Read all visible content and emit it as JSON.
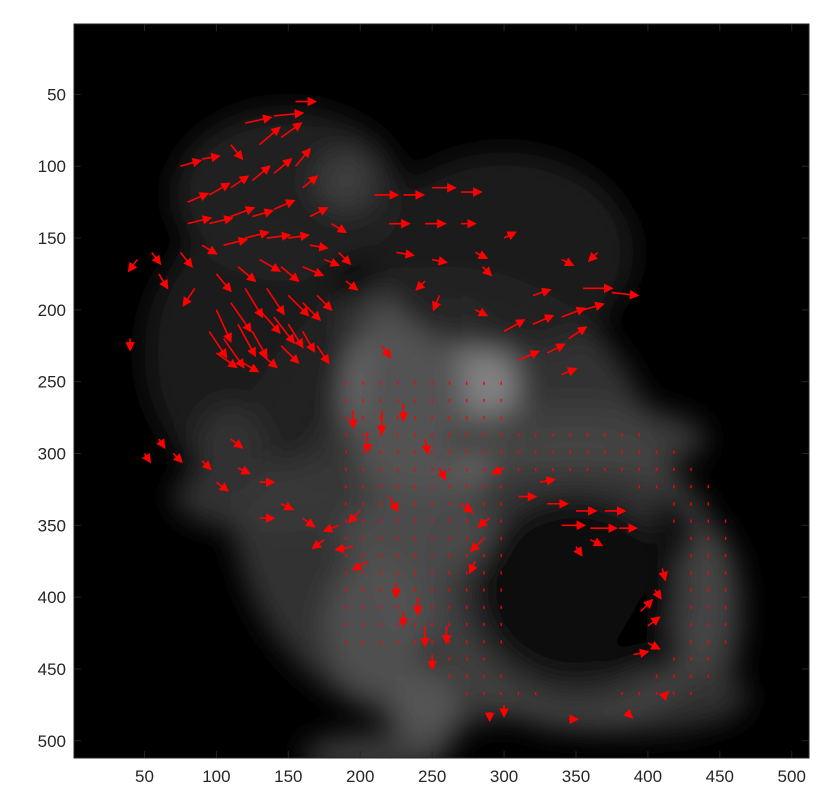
{
  "chart_data": {
    "type": "quiver",
    "title": "",
    "xlabel": "",
    "ylabel": "",
    "xlim": [
      1,
      512
    ],
    "ylim": [
      512,
      1
    ],
    "y_direction": "reversed",
    "x_ticks": [
      "50",
      "100",
      "150",
      "200",
      "250",
      "300",
      "350",
      "400",
      "450",
      "500"
    ],
    "y_ticks": [
      "50",
      "100",
      "150",
      "200",
      "250",
      "300",
      "350",
      "400",
      "450",
      "500"
    ],
    "background": "grayscale image",
    "arrow_color": "#ff0000",
    "grid": false,
    "legend": "none",
    "blobs": [
      {
        "x": 260,
        "y": 330,
        "rx": 150,
        "ry": 160,
        "intensity": 0.22
      },
      {
        "x": 250,
        "y": 260,
        "rx": 60,
        "ry": 70,
        "intensity": 0.55
      },
      {
        "x": 235,
        "y": 300,
        "rx": 40,
        "ry": 130,
        "intensity": 0.3
      },
      {
        "x": 120,
        "y": 230,
        "rx": 70,
        "ry": 90,
        "intensity": 0.12
      },
      {
        "x": 150,
        "y": 120,
        "rx": 80,
        "ry": 60,
        "intensity": 0.14
      },
      {
        "x": 300,
        "y": 160,
        "rx": 90,
        "ry": 70,
        "intensity": 0.12
      },
      {
        "x": 190,
        "y": 110,
        "rx": 22,
        "ry": 22,
        "intensity": 0.25
      },
      {
        "x": 240,
        "y": 355,
        "rx": 55,
        "ry": 30,
        "intensity": 0.3
      },
      {
        "x": 140,
        "y": 330,
        "rx": 70,
        "ry": 25,
        "intensity": 0.22
      },
      {
        "x": 110,
        "y": 300,
        "rx": 25,
        "ry": 35,
        "intensity": 0.2
      },
      {
        "x": 210,
        "y": 420,
        "rx": 35,
        "ry": 50,
        "intensity": 0.32
      },
      {
        "x": 245,
        "y": 480,
        "rx": 25,
        "ry": 30,
        "intensity": 0.35
      },
      {
        "x": 210,
        "y": 510,
        "rx": 50,
        "ry": 15,
        "intensity": 0.25
      },
      {
        "x": 440,
        "y": 410,
        "rx": 25,
        "ry": 60,
        "intensity": 0.28
      },
      {
        "x": 350,
        "y": 290,
        "rx": 90,
        "ry": 25,
        "intensity": 0.25
      },
      {
        "x": 390,
        "y": 470,
        "rx": 80,
        "ry": 25,
        "intensity": 0.2
      },
      {
        "x": 350,
        "y": 395,
        "rx": 70,
        "ry": 65,
        "intensity": -0.06
      }
    ],
    "ring": {
      "x": 350,
      "y": 390,
      "r": 95,
      "width": 14,
      "intensity": 0.28
    },
    "vectors": [
      {
        "x": 95,
        "y": 215,
        "u": 12,
        "v": 18
      },
      {
        "x": 105,
        "y": 220,
        "u": 14,
        "v": 20
      },
      {
        "x": 115,
        "y": 210,
        "u": 12,
        "v": 22
      },
      {
        "x": 125,
        "y": 215,
        "u": 10,
        "v": 18
      },
      {
        "x": 100,
        "y": 200,
        "u": 10,
        "v": 22
      },
      {
        "x": 110,
        "y": 195,
        "u": 14,
        "v": 20
      },
      {
        "x": 130,
        "y": 200,
        "u": 14,
        "v": 16
      },
      {
        "x": 140,
        "y": 205,
        "u": 14,
        "v": 18
      },
      {
        "x": 150,
        "y": 210,
        "u": 10,
        "v": 16
      },
      {
        "x": 160,
        "y": 215,
        "u": 8,
        "v": 14
      },
      {
        "x": 100,
        "y": 230,
        "u": 14,
        "v": 10
      },
      {
        "x": 115,
        "y": 235,
        "u": 14,
        "v": 8
      },
      {
        "x": 130,
        "y": 230,
        "u": 12,
        "v": 10
      },
      {
        "x": 145,
        "y": 225,
        "u": 12,
        "v": 12
      },
      {
        "x": 170,
        "y": 225,
        "u": 8,
        "v": 12
      },
      {
        "x": 120,
        "y": 185,
        "u": 12,
        "v": 20
      },
      {
        "x": 135,
        "y": 185,
        "u": 12,
        "v": 18
      },
      {
        "x": 150,
        "y": 190,
        "u": 14,
        "v": 14
      },
      {
        "x": 160,
        "y": 195,
        "u": 12,
        "v": 12
      },
      {
        "x": 170,
        "y": 190,
        "u": 10,
        "v": 10
      },
      {
        "x": 85,
        "y": 185,
        "u": -8,
        "v": 12
      },
      {
        "x": 100,
        "y": 175,
        "u": 10,
        "v": 12
      },
      {
        "x": 115,
        "y": 170,
        "u": 12,
        "v": 10
      },
      {
        "x": 130,
        "y": 165,
        "u": 14,
        "v": 8
      },
      {
        "x": 145,
        "y": 170,
        "u": 12,
        "v": 10
      },
      {
        "x": 160,
        "y": 170,
        "u": 14,
        "v": 6
      },
      {
        "x": 75,
        "y": 160,
        "u": 8,
        "v": 10
      },
      {
        "x": 90,
        "y": 155,
        "u": 10,
        "v": 6
      },
      {
        "x": 105,
        "y": 155,
        "u": 16,
        "v": -4
      },
      {
        "x": 120,
        "y": 150,
        "u": 16,
        "v": -4
      },
      {
        "x": 135,
        "y": 150,
        "u": 16,
        "v": -2
      },
      {
        "x": 150,
        "y": 150,
        "u": 14,
        "v": -2
      },
      {
        "x": 165,
        "y": 155,
        "u": 12,
        "v": 2
      },
      {
        "x": 175,
        "y": 165,
        "u": 10,
        "v": 4
      },
      {
        "x": 80,
        "y": 140,
        "u": 16,
        "v": -4
      },
      {
        "x": 95,
        "y": 140,
        "u": 16,
        "v": -4
      },
      {
        "x": 110,
        "y": 135,
        "u": 16,
        "v": -6
      },
      {
        "x": 125,
        "y": 135,
        "u": 14,
        "v": -4
      },
      {
        "x": 140,
        "y": 130,
        "u": 14,
        "v": -6
      },
      {
        "x": 80,
        "y": 125,
        "u": 14,
        "v": -6
      },
      {
        "x": 95,
        "y": 120,
        "u": 14,
        "v": -8
      },
      {
        "x": 110,
        "y": 115,
        "u": 12,
        "v": -8
      },
      {
        "x": 125,
        "y": 110,
        "u": 12,
        "v": -10
      },
      {
        "x": 140,
        "y": 105,
        "u": 12,
        "v": -10
      },
      {
        "x": 155,
        "y": 100,
        "u": 10,
        "v": -12
      },
      {
        "x": 75,
        "y": 100,
        "u": 14,
        "v": -4
      },
      {
        "x": 90,
        "y": 95,
        "u": 12,
        "v": -2
      },
      {
        "x": 130,
        "y": 85,
        "u": 14,
        "v": -12
      },
      {
        "x": 145,
        "y": 80,
        "u": 14,
        "v": -10
      },
      {
        "x": 120,
        "y": 70,
        "u": 18,
        "v": -4
      },
      {
        "x": 140,
        "y": 65,
        "u": 20,
        "v": -2
      },
      {
        "x": 155,
        "y": 55,
        "u": 14,
        "v": 0
      },
      {
        "x": 110,
        "y": 85,
        "u": 8,
        "v": 10
      },
      {
        "x": 160,
        "y": 115,
        "u": 10,
        "v": -8
      },
      {
        "x": 165,
        "y": 135,
        "u": 12,
        "v": -6
      },
      {
        "x": 180,
        "y": 140,
        "u": 10,
        "v": 6
      },
      {
        "x": 185,
        "y": 160,
        "u": 8,
        "v": 8
      },
      {
        "x": 190,
        "y": 180,
        "u": 8,
        "v": 6
      },
      {
        "x": 45,
        "y": 165,
        "u": -6,
        "v": 8
      },
      {
        "x": 55,
        "y": 160,
        "u": 6,
        "v": 8
      },
      {
        "x": 60,
        "y": 175,
        "u": 6,
        "v": 10
      },
      {
        "x": 210,
        "y": 120,
        "u": 16,
        "v": 0
      },
      {
        "x": 230,
        "y": 120,
        "u": 14,
        "v": 0
      },
      {
        "x": 250,
        "y": 115,
        "u": 16,
        "v": 0
      },
      {
        "x": 270,
        "y": 118,
        "u": 14,
        "v": 0
      },
      {
        "x": 220,
        "y": 140,
        "u": 14,
        "v": 0
      },
      {
        "x": 245,
        "y": 140,
        "u": 14,
        "v": 0
      },
      {
        "x": 270,
        "y": 140,
        "u": 10,
        "v": 0
      },
      {
        "x": 225,
        "y": 160,
        "u": 12,
        "v": 2
      },
      {
        "x": 250,
        "y": 165,
        "u": 10,
        "v": 2
      },
      {
        "x": 280,
        "y": 160,
        "u": 8,
        "v": 4
      },
      {
        "x": 300,
        "y": 150,
        "u": 8,
        "v": -4
      },
      {
        "x": 285,
        "y": 170,
        "u": 6,
        "v": 6
      },
      {
        "x": 255,
        "y": 190,
        "u": -4,
        "v": 10
      },
      {
        "x": 245,
        "y": 180,
        "u": -6,
        "v": 6
      },
      {
        "x": 215,
        "y": 225,
        "u": 6,
        "v": 8
      },
      {
        "x": 300,
        "y": 215,
        "u": 14,
        "v": -8
      },
      {
        "x": 320,
        "y": 210,
        "u": 14,
        "v": -6
      },
      {
        "x": 340,
        "y": 205,
        "u": 16,
        "v": -6
      },
      {
        "x": 355,
        "y": 200,
        "u": 14,
        "v": -4
      },
      {
        "x": 310,
        "y": 235,
        "u": 14,
        "v": -6
      },
      {
        "x": 330,
        "y": 230,
        "u": 12,
        "v": -6
      },
      {
        "x": 345,
        "y": 220,
        "u": 12,
        "v": -8
      },
      {
        "x": 320,
        "y": 190,
        "u": 12,
        "v": -4
      },
      {
        "x": 355,
        "y": 185,
        "u": 20,
        "v": 0
      },
      {
        "x": 375,
        "y": 188,
        "u": 18,
        "v": 2
      },
      {
        "x": 340,
        "y": 245,
        "u": 10,
        "v": -4
      },
      {
        "x": 365,
        "y": 160,
        "u": -6,
        "v": 6
      },
      {
        "x": 340,
        "y": 165,
        "u": 8,
        "v": 4
      },
      {
        "x": 280,
        "y": 200,
        "u": 8,
        "v": 4
      },
      {
        "x": 215,
        "y": 270,
        "u": 0,
        "v": 16
      },
      {
        "x": 205,
        "y": 285,
        "u": 0,
        "v": 14
      },
      {
        "x": 195,
        "y": 270,
        "u": 0,
        "v": 12
      },
      {
        "x": 230,
        "y": 265,
        "u": 0,
        "v": 12
      },
      {
        "x": 245,
        "y": 290,
        "u": 2,
        "v": 10
      },
      {
        "x": 255,
        "y": 310,
        "u": 4,
        "v": 8
      },
      {
        "x": 220,
        "y": 330,
        "u": 6,
        "v": 10
      },
      {
        "x": 200,
        "y": 340,
        "u": -8,
        "v": 8
      },
      {
        "x": 185,
        "y": 350,
        "u": -10,
        "v": 4
      },
      {
        "x": 175,
        "y": 360,
        "u": -8,
        "v": 6
      },
      {
        "x": 205,
        "y": 375,
        "u": -10,
        "v": 6
      },
      {
        "x": 195,
        "y": 365,
        "u": -12,
        "v": 2
      },
      {
        "x": 225,
        "y": 390,
        "u": 0,
        "v": 10
      },
      {
        "x": 240,
        "y": 400,
        "u": 0,
        "v": 12
      },
      {
        "x": 245,
        "y": 420,
        "u": 0,
        "v": 14
      },
      {
        "x": 250,
        "y": 440,
        "u": 0,
        "v": 10
      },
      {
        "x": 230,
        "y": 410,
        "u": 0,
        "v": 10
      },
      {
        "x": 260,
        "y": 420,
        "u": 0,
        "v": 12
      },
      {
        "x": 100,
        "y": 320,
        "u": 8,
        "v": 6
      },
      {
        "x": 115,
        "y": 310,
        "u": 8,
        "v": 4
      },
      {
        "x": 130,
        "y": 320,
        "u": 10,
        "v": 0
      },
      {
        "x": 145,
        "y": 335,
        "u": 8,
        "v": 4
      },
      {
        "x": 160,
        "y": 345,
        "u": 8,
        "v": 6
      },
      {
        "x": 130,
        "y": 345,
        "u": 10,
        "v": 0
      },
      {
        "x": 110,
        "y": 290,
        "u": 8,
        "v": 6
      },
      {
        "x": 90,
        "y": 305,
        "u": 6,
        "v": 6
      },
      {
        "x": 70,
        "y": 300,
        "u": 6,
        "v": 6
      },
      {
        "x": 60,
        "y": 290,
        "u": 4,
        "v": 6
      },
      {
        "x": 50,
        "y": 300,
        "u": 4,
        "v": 6
      },
      {
        "x": 40,
        "y": 220,
        "u": 0,
        "v": 8
      },
      {
        "x": 310,
        "y": 330,
        "u": 12,
        "v": 0
      },
      {
        "x": 330,
        "y": 335,
        "u": 14,
        "v": 0
      },
      {
        "x": 350,
        "y": 340,
        "u": 14,
        "v": 0
      },
      {
        "x": 370,
        "y": 340,
        "u": 14,
        "v": 0
      },
      {
        "x": 340,
        "y": 350,
        "u": 16,
        "v": 0
      },
      {
        "x": 360,
        "y": 352,
        "u": 18,
        "v": 0
      },
      {
        "x": 380,
        "y": 352,
        "u": 12,
        "v": 0
      },
      {
        "x": 325,
        "y": 320,
        "u": 10,
        "v": -2
      },
      {
        "x": 290,
        "y": 345,
        "u": -8,
        "v": 6
      },
      {
        "x": 285,
        "y": 360,
        "u": -8,
        "v": 8
      },
      {
        "x": 280,
        "y": 375,
        "u": -4,
        "v": 8
      },
      {
        "x": 300,
        "y": 310,
        "u": -8,
        "v": 4
      },
      {
        "x": 350,
        "y": 365,
        "u": 4,
        "v": 6
      },
      {
        "x": 360,
        "y": 360,
        "u": 8,
        "v": 4
      },
      {
        "x": 395,
        "y": 410,
        "u": 8,
        "v": -8
      },
      {
        "x": 400,
        "y": 420,
        "u": 8,
        "v": -6
      },
      {
        "x": 400,
        "y": 432,
        "u": 8,
        "v": 4
      },
      {
        "x": 390,
        "y": 440,
        "u": 10,
        "v": -2
      },
      {
        "x": 405,
        "y": 395,
        "u": 4,
        "v": 6
      },
      {
        "x": 410,
        "y": 380,
        "u": 2,
        "v": 8
      },
      {
        "x": 290,
        "y": 480,
        "u": 0,
        "v": 6
      },
      {
        "x": 300,
        "y": 475,
        "u": 0,
        "v": 8
      },
      {
        "x": 345,
        "y": 485,
        "u": 6,
        "v": 0
      },
      {
        "x": 385,
        "y": 480,
        "u": 4,
        "v": 4
      },
      {
        "x": 410,
        "y": 470,
        "u": 4,
        "v": -4
      },
      {
        "x": 270,
        "y": 335,
        "u": 8,
        "v": 6
      }
    ]
  }
}
